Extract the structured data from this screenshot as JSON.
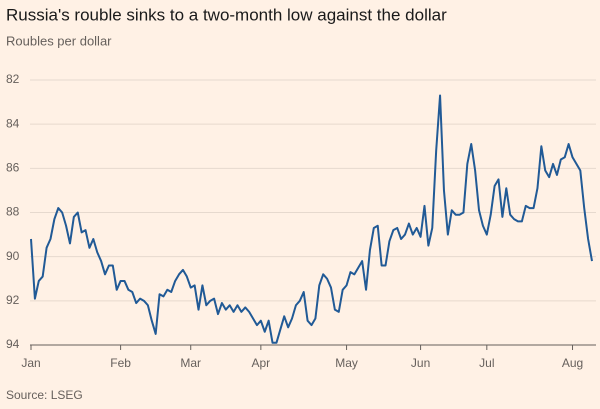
{
  "chart_data": {
    "type": "line",
    "title": "Russia's rouble sinks to a two-month low against the dollar",
    "subtitle": "Roubles per dollar",
    "source": "Source: LSEG",
    "color": "#215a96",
    "ylim": [
      94,
      82
    ],
    "yticks": [
      82,
      84,
      86,
      88,
      90,
      92,
      94
    ],
    "grid": true,
    "categories": [
      "Jan",
      null,
      null,
      null,
      null,
      null,
      null,
      null,
      null,
      null,
      null,
      null,
      null,
      null,
      null,
      null,
      null,
      null,
      null,
      null,
      null,
      null,
      null,
      "Feb",
      null,
      null,
      null,
      null,
      null,
      null,
      null,
      null,
      null,
      null,
      null,
      null,
      null,
      null,
      null,
      null,
      null,
      "Mar",
      null,
      null,
      null,
      null,
      null,
      null,
      null,
      null,
      null,
      null,
      null,
      null,
      null,
      null,
      null,
      null,
      null,
      "Apr",
      null,
      null,
      null,
      null,
      null,
      null,
      null,
      null,
      null,
      null,
      null,
      null,
      null,
      null,
      null,
      null,
      null,
      null,
      null,
      null,
      null,
      "May",
      null,
      null,
      null,
      null,
      null,
      null,
      null,
      null,
      null,
      null,
      null,
      null,
      null,
      null,
      null,
      null,
      null,
      null,
      "Jun",
      null,
      null,
      null,
      null,
      null,
      null,
      null,
      null,
      null,
      null,
      null,
      null,
      null,
      null,
      null,
      null,
      "Jul",
      null,
      null,
      null,
      null,
      null,
      null,
      null,
      null,
      null,
      null,
      null,
      null,
      null,
      null,
      null,
      null,
      null,
      null,
      null,
      null,
      null,
      "Aug",
      null,
      null,
      null,
      null,
      null
    ],
    "values": [
      89.2,
      91.9,
      91.1,
      90.9,
      89.6,
      89.2,
      88.3,
      87.8,
      88.0,
      88.6,
      89.4,
      88.2,
      88.0,
      88.9,
      88.8,
      89.6,
      89.2,
      89.8,
      90.2,
      90.8,
      90.4,
      90.4,
      91.5,
      91.1,
      91.1,
      91.5,
      91.6,
      92.1,
      91.9,
      92.0,
      92.2,
      92.9,
      93.5,
      91.7,
      91.8,
      91.5,
      91.6,
      91.1,
      90.8,
      90.6,
      90.9,
      91.4,
      91.3,
      92.4,
      91.3,
      92.2,
      92.0,
      91.9,
      92.6,
      92.1,
      92.4,
      92.2,
      92.5,
      92.2,
      92.5,
      92.3,
      92.5,
      92.8,
      93.1,
      92.9,
      93.4,
      92.9,
      93.9,
      93.9,
      93.3,
      92.7,
      93.2,
      92.8,
      92.2,
      92.0,
      91.6,
      92.9,
      93.1,
      92.8,
      91.3,
      90.8,
      91.0,
      91.4,
      92.4,
      92.5,
      91.5,
      91.3,
      90.7,
      90.8,
      90.5,
      90.2,
      91.5,
      89.7,
      88.7,
      88.6,
      90.4,
      90.4,
      89.3,
      88.8,
      88.7,
      89.2,
      89.0,
      88.5,
      89.0,
      88.7,
      89.1,
      87.7,
      89.5,
      88.7,
      85.2,
      82.7,
      87.0,
      89.0,
      87.9,
      88.1,
      88.1,
      88.0,
      85.8,
      84.9,
      86.1,
      87.9,
      88.6,
      89.0,
      88.1,
      86.8,
      86.5,
      88.2,
      86.9,
      88.1,
      88.3,
      88.4,
      88.4,
      87.7,
      87.8,
      87.8,
      86.9,
      85.0,
      86.1,
      86.4,
      85.8,
      86.3,
      85.6,
      85.5,
      84.9,
      85.5,
      85.8,
      86.1,
      87.8,
      89.2,
      90.2
    ]
  }
}
